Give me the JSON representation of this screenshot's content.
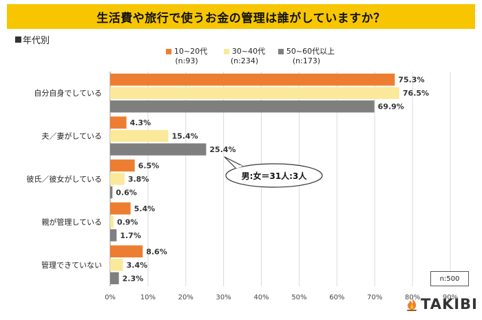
{
  "title": "生活費や旅行で使うお金の管理は誰がしていますか？",
  "subtitle": "年代別",
  "note": "n:500",
  "brand": "TAKIBI",
  "callout": "男:女＝31人:3人",
  "colors": {
    "title_bg": "#f7c600",
    "series": [
      "#ed7d31",
      "#fbe99b",
      "#7f7f7f"
    ]
  },
  "legend": [
    {
      "label": "10~20代",
      "n": "(n:93)"
    },
    {
      "label": "30~40代",
      "n": "(n:234)"
    },
    {
      "label": "50~60代以上",
      "n": "(n:173)"
    }
  ],
  "chart_data": {
    "type": "bar",
    "orientation": "horizontal",
    "categories": [
      "自分自身でしている",
      "夫／妻がしている",
      "彼氏／彼女がしている",
      "親が管理している",
      "管理できていない"
    ],
    "series": [
      {
        "name": "10~20代",
        "values": [
          75.3,
          4.3,
          6.5,
          5.4,
          8.6
        ]
      },
      {
        "name": "30~40代",
        "values": [
          76.5,
          15.4,
          3.8,
          0.9,
          3.4
        ]
      },
      {
        "name": "50~60代以上",
        "values": [
          69.9,
          25.4,
          0.6,
          1.7,
          2.3
        ]
      }
    ],
    "xlim": [
      0,
      90
    ],
    "xticks": [
      0,
      10,
      20,
      30,
      40,
      50,
      60,
      70,
      80,
      90
    ],
    "tick_suffix": "%",
    "value_suffix": "%",
    "grid": true
  }
}
